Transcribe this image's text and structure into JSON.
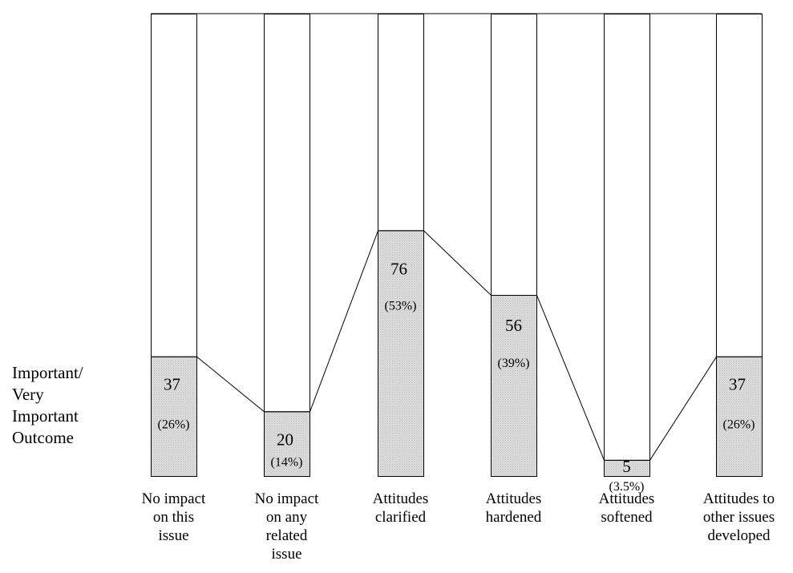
{
  "chart_data": {
    "type": "bar",
    "title": "",
    "xlabel": "",
    "ylabel_lines": [
      "Important/",
      "Very",
      "Important",
      "Outcome"
    ],
    "categories": [
      [
        "No impact",
        "on this",
        "issue"
      ],
      [
        "No impact",
        "on any",
        "related",
        "issue"
      ],
      [
        "Attitudes",
        "clarified"
      ],
      [
        "Attitudes",
        "hardened"
      ],
      [
        "Attitudes",
        "softened"
      ],
      [
        "Attitudes to",
        "other issues",
        "developed"
      ]
    ],
    "values": [
      37,
      20,
      76,
      56,
      5,
      37
    ],
    "value_labels": [
      "37",
      "20",
      "76",
      "56",
      "5",
      "37"
    ],
    "percent_labels": [
      "(26%)",
      "(14%)",
      "(53%)",
      "(39%)",
      "(3.5%)",
      "(26%)"
    ],
    "ylim": [
      0,
      143
    ],
    "legend": "none",
    "grid": false,
    "connecting_line": true,
    "colors": {
      "fill": "#d9d9d9",
      "empty": "#ffffff",
      "stroke": "#000000"
    }
  }
}
